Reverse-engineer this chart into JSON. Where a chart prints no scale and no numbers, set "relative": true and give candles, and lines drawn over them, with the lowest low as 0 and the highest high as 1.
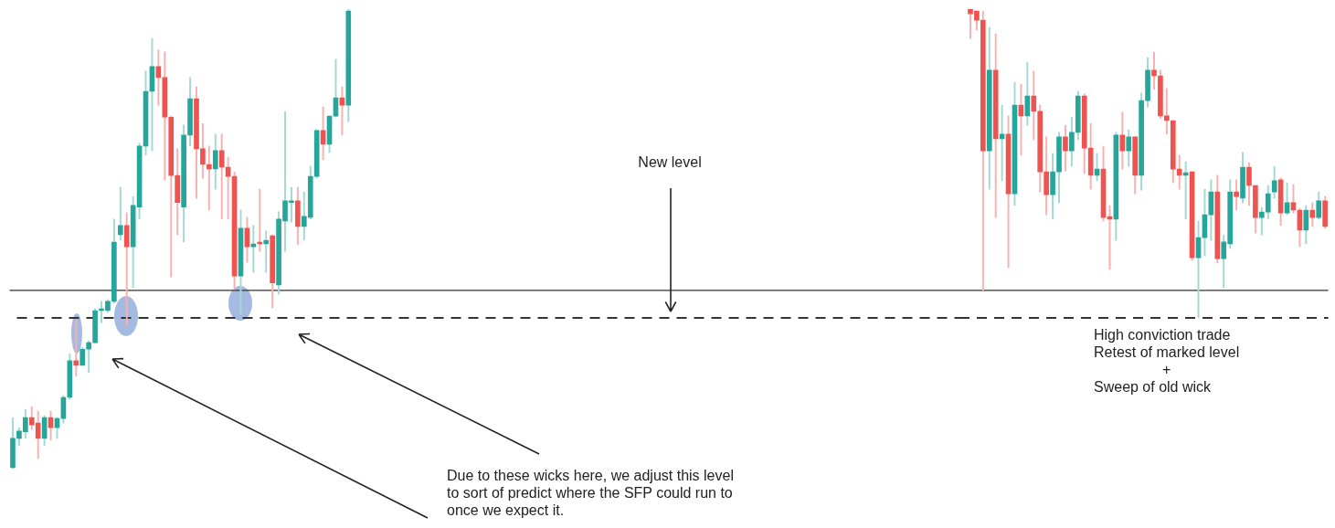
{
  "chart_data": [
    {
      "type": "candlestick",
      "relative": true,
      "categories": [
        null,
        null,
        null,
        null,
        null,
        null,
        null,
        null,
        null,
        null,
        null,
        null,
        null,
        null,
        null,
        null,
        null,
        null,
        null,
        null,
        null,
        null,
        null,
        null,
        null,
        null,
        null,
        null,
        null,
        null,
        null,
        null,
        null,
        null,
        null,
        null,
        null,
        null,
        null,
        null,
        null,
        null,
        null,
        null,
        null,
        null,
        null,
        null,
        null,
        null,
        null,
        null,
        null,
        null
      ],
      "ohlc": [
        [
          0.002,
          0.111,
          0.0,
          0.066
        ],
        [
          0.066,
          0.089,
          0.05,
          0.082
        ],
        [
          0.08,
          0.129,
          0.066,
          0.111
        ],
        [
          0.111,
          0.135,
          0.085,
          0.095
        ],
        [
          0.099,
          0.125,
          0.022,
          0.066
        ],
        [
          0.066,
          0.115,
          0.05,
          0.111
        ],
        [
          0.111,
          0.125,
          0.062,
          0.089
        ],
        [
          0.089,
          0.111,
          0.066,
          0.109
        ],
        [
          0.109,
          0.159,
          0.099,
          0.155
        ],
        [
          0.155,
          0.25,
          0.151,
          0.235
        ],
        [
          0.235,
          0.324,
          0.201,
          0.225
        ],
        [
          0.225,
          0.264,
          0.225,
          0.26
        ],
        [
          0.26,
          0.278,
          0.209,
          0.274
        ],
        [
          0.274,
          0.348,
          0.274,
          0.344
        ],
        [
          0.344,
          0.364,
          0.318,
          0.348
        ],
        [
          0.344,
          0.368,
          0.34,
          0.364
        ],
        [
          0.364,
          0.543,
          0.36,
          0.493
        ],
        [
          0.509,
          0.612,
          0.497,
          0.529
        ],
        [
          0.529,
          0.557,
          0.31,
          0.483
        ],
        [
          0.483,
          0.592,
          0.394,
          0.573
        ],
        [
          0.569,
          0.708,
          0.543,
          0.702
        ],
        [
          0.702,
          0.865,
          0.682,
          0.821
        ],
        [
          0.821,
          0.936,
          0.692,
          0.875
        ],
        [
          0.875,
          0.911,
          0.791,
          0.851
        ],
        [
          0.851,
          0.907,
          0.628,
          0.765
        ],
        [
          0.765,
          0.767,
          0.417,
          0.638
        ],
        [
          0.638,
          0.696,
          0.509,
          0.579
        ],
        [
          0.569,
          0.748,
          0.493,
          0.726
        ],
        [
          0.726,
          0.851,
          0.702,
          0.805
        ],
        [
          0.805,
          0.831,
          0.588,
          0.696
        ],
        [
          0.696,
          0.751,
          0.632,
          0.662
        ],
        [
          0.662,
          0.702,
          0.563,
          0.652
        ],
        [
          0.652,
          0.728,
          0.608,
          0.692
        ],
        [
          0.692,
          0.728,
          0.543,
          0.656
        ],
        [
          0.656,
          0.678,
          0.543,
          0.636
        ],
        [
          0.636,
          0.646,
          0.39,
          0.419
        ],
        [
          0.419,
          0.563,
          0.338,
          0.523
        ],
        [
          0.523,
          0.547,
          0.449,
          0.483
        ],
        [
          0.483,
          0.529,
          0.427,
          0.489
        ],
        [
          0.493,
          0.608,
          0.473,
          0.489
        ],
        [
          0.489,
          0.517,
          0.427,
          0.497
        ],
        [
          0.507,
          0.509,
          0.35,
          0.404
        ],
        [
          0.4,
          0.559,
          0.38,
          0.543
        ],
        [
          0.539,
          0.777,
          0.473,
          0.583
        ],
        [
          0.579,
          0.612,
          0.537,
          0.583
        ],
        [
          0.583,
          0.612,
          0.487,
          0.527
        ],
        [
          0.527,
          0.602,
          0.497,
          0.549
        ],
        [
          0.547,
          0.658,
          0.543,
          0.636
        ],
        [
          0.636,
          0.738,
          0.632,
          0.736
        ],
        [
          0.736,
          0.787,
          0.672,
          0.706
        ],
        [
          0.706,
          0.767,
          0.688,
          0.767
        ],
        [
          0.767,
          0.891,
          0.765,
          0.807
        ],
        [
          0.807,
          0.831,
          0.726,
          0.791
        ],
        [
          0.791,
          1.0,
          0.755,
          0.996
        ]
      ],
      "ref_lines": [
        {
          "axis": "y",
          "value": 0.388,
          "color": "#333333"
        },
        {
          "axis": "y",
          "value": 0.328,
          "line_style": "dashed",
          "label": "New level",
          "color": "#333333"
        }
      ],
      "annotations": [
        "Due to these wicks here, we adjust this level\nto sort of predict where the SFP could run to\nonce we expect it."
      ]
    },
    {
      "type": "candlestick",
      "relative": true,
      "categories": [
        null,
        null,
        null,
        null,
        null,
        null,
        null,
        null,
        null,
        null,
        null,
        null,
        null,
        null,
        null,
        null,
        null,
        null,
        null,
        null,
        null,
        null,
        null,
        null,
        null,
        null,
        null,
        null,
        null,
        null,
        null,
        null,
        null,
        null,
        null,
        null,
        null,
        null,
        null,
        null,
        null,
        null,
        null,
        null,
        null,
        null,
        null,
        null,
        null,
        null,
        null,
        null,
        null,
        null,
        null,
        null,
        null
      ],
      "ohlc": [
        [
          1.0,
          1.0,
          0.905,
          0.985
        ],
        [
          0.994,
          0.994,
          0.932,
          0.964
        ],
        [
          0.964,
          0.994,
          0.089,
          0.541
        ],
        [
          0.541,
          0.941,
          0.417,
          0.802
        ],
        [
          0.802,
          0.92,
          0.325,
          0.58
        ],
        [
          0.58,
          0.689,
          0.444,
          0.595
        ],
        [
          0.595,
          0.654,
          0.163,
          0.402
        ],
        [
          0.402,
          0.763,
          0.364,
          0.689
        ],
        [
          0.689,
          0.757,
          0.527,
          0.654
        ],
        [
          0.654,
          0.828,
          0.624,
          0.719
        ],
        [
          0.719,
          0.799,
          0.577,
          0.669
        ],
        [
          0.669,
          0.689,
          0.408,
          0.473
        ],
        [
          0.473,
          0.586,
          0.334,
          0.399
        ],
        [
          0.399,
          0.533,
          0.32,
          0.473
        ],
        [
          0.473,
          0.601,
          0.373,
          0.586
        ],
        [
          0.586,
          0.624,
          0.476,
          0.541
        ],
        [
          0.541,
          0.651,
          0.491,
          0.601
        ],
        [
          0.601,
          0.734,
          0.577,
          0.719
        ],
        [
          0.719,
          0.725,
          0.467,
          0.55
        ],
        [
          0.55,
          0.63,
          0.417,
          0.462
        ],
        [
          0.462,
          0.533,
          0.444,
          0.482
        ],
        [
          0.482,
          0.556,
          0.314,
          0.325
        ],
        [
          0.328,
          0.364,
          0.157,
          0.32
        ],
        [
          0.32,
          0.601,
          0.251,
          0.592
        ],
        [
          0.592,
          0.666,
          0.482,
          0.541
        ],
        [
          0.541,
          0.609,
          0.491,
          0.586
        ],
        [
          0.586,
          0.586,
          0.402,
          0.462
        ],
        [
          0.462,
          0.728,
          0.414,
          0.704
        ],
        [
          0.704,
          0.843,
          0.683,
          0.802
        ],
        [
          0.802,
          0.861,
          0.74,
          0.784
        ],
        [
          0.784,
          0.802,
          0.645,
          0.654
        ],
        [
          0.654,
          0.743,
          0.595,
          0.639
        ],
        [
          0.639,
          0.639,
          0.438,
          0.482
        ],
        [
          0.482,
          0.527,
          0.417,
          0.462
        ],
        [
          0.462,
          0.506,
          0.32,
          0.47
        ],
        [
          0.473,
          0.473,
          0.186,
          0.195
        ],
        [
          0.195,
          0.314,
          0.0,
          0.26
        ],
        [
          0.26,
          0.417,
          0.201,
          0.334
        ],
        [
          0.334,
          0.447,
          0.251,
          0.408
        ],
        [
          0.408,
          0.462,
          0.178,
          0.192
        ],
        [
          0.192,
          0.269,
          0.098,
          0.246
        ],
        [
          0.24,
          0.447,
          0.225,
          0.408
        ],
        [
          0.408,
          0.447,
          0.349,
          0.393
        ],
        [
          0.388,
          0.536,
          0.373,
          0.488
        ],
        [
          0.488,
          0.503,
          0.364,
          0.429
        ],
        [
          0.429,
          0.429,
          0.275,
          0.325
        ],
        [
          0.325,
          0.358,
          0.269,
          0.343
        ],
        [
          0.343,
          0.429,
          0.32,
          0.402
        ],
        [
          0.408,
          0.491,
          0.388,
          0.444
        ],
        [
          0.447,
          0.453,
          0.299,
          0.34
        ],
        [
          0.34,
          0.438,
          0.334,
          0.373
        ],
        [
          0.373,
          0.432,
          0.34,
          0.349
        ],
        [
          0.349,
          0.355,
          0.231,
          0.284
        ],
        [
          0.284,
          0.364,
          0.24,
          0.349
        ],
        [
          0.349,
          0.373,
          0.296,
          0.325
        ],
        [
          0.325,
          0.408,
          0.32,
          0.379
        ],
        [
          0.379,
          0.393,
          0.29,
          0.296
        ]
      ],
      "ref_lines": [
        {
          "axis": "y",
          "value": 0.089,
          "color": "#333333"
        },
        {
          "axis": "y",
          "value": 0.0,
          "line_style": "dashed",
          "color": "#333333"
        }
      ],
      "annotations": [
        "High conviction trade\nRetest of marked level\n+\nSweep of old wick"
      ]
    }
  ]
}
